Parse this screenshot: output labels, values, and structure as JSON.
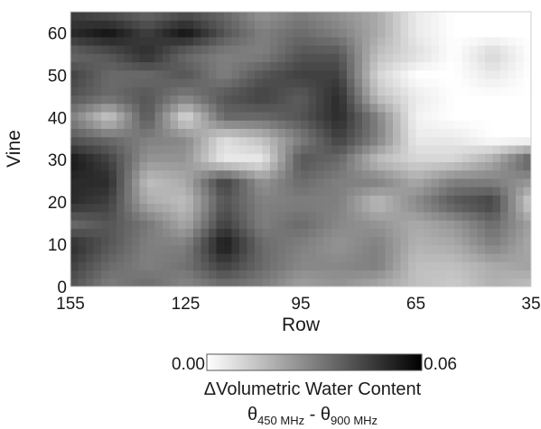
{
  "chart_data": {
    "type": "heatmap",
    "title": "",
    "xlabel": "Row",
    "ylabel": "Vine",
    "xlim": [
      155,
      35
    ],
    "ylim": [
      0,
      65
    ],
    "xticks": [
      "155",
      "125",
      "95",
      "65",
      "35"
    ],
    "yticks": [
      "0",
      "10",
      "20",
      "30",
      "40",
      "50",
      "60"
    ],
    "colorbar": {
      "min_label": "0.00",
      "max_label": "0.06",
      "title": "ΔVolumetric Water Content",
      "subtitle_left": "θ",
      "subtitle_left_sub": "450 MHz",
      "subtitle_sep": " - ",
      "subtitle_right": "θ",
      "subtitle_right_sub": "900 MHz",
      "range": [
        0.0,
        0.06
      ],
      "colormap": "white-to-black"
    },
    "grid_x": [
      155,
      145,
      135,
      125,
      115,
      105,
      95,
      85,
      75,
      65,
      55,
      45,
      35
    ],
    "grid_y": [
      0,
      5,
      10,
      15,
      20,
      25,
      30,
      35,
      40,
      45,
      50,
      55,
      60,
      65
    ],
    "values": [
      [
        0.04,
        0.03,
        0.035,
        0.028,
        0.033,
        0.03,
        0.022,
        0.025,
        0.02,
        0.015,
        0.012,
        0.018,
        0.015
      ],
      [
        0.045,
        0.035,
        0.03,
        0.033,
        0.045,
        0.035,
        0.028,
        0.028,
        0.03,
        0.015,
        0.015,
        0.02,
        0.022
      ],
      [
        0.05,
        0.04,
        0.03,
        0.03,
        0.055,
        0.035,
        0.03,
        0.025,
        0.03,
        0.018,
        0.02,
        0.03,
        0.02
      ],
      [
        0.035,
        0.04,
        0.032,
        0.02,
        0.045,
        0.03,
        0.035,
        0.028,
        0.025,
        0.02,
        0.025,
        0.035,
        0.022
      ],
      [
        0.05,
        0.045,
        0.02,
        0.015,
        0.04,
        0.03,
        0.03,
        0.03,
        0.015,
        0.028,
        0.04,
        0.045,
        0.01
      ],
      [
        0.05,
        0.05,
        0.015,
        0.02,
        0.045,
        0.025,
        0.035,
        0.03,
        0.03,
        0.02,
        0.03,
        0.03,
        0.025
      ],
      [
        0.055,
        0.045,
        0.025,
        0.025,
        0.005,
        0.005,
        0.04,
        0.035,
        0.015,
        0.01,
        0.01,
        0.02,
        0.04
      ],
      [
        0.04,
        0.035,
        0.03,
        0.028,
        0.008,
        0.015,
        0.03,
        0.045,
        0.03,
        0.005,
        0.005,
        0.0,
        0.0
      ],
      [
        0.03,
        0.012,
        0.04,
        0.008,
        0.035,
        0.035,
        0.04,
        0.05,
        0.03,
        0.003,
        0.0,
        0.0,
        0.0
      ],
      [
        0.04,
        0.035,
        0.04,
        0.03,
        0.04,
        0.045,
        0.038,
        0.05,
        0.015,
        0.005,
        0.0,
        0.0,
        0.0
      ],
      [
        0.045,
        0.035,
        0.035,
        0.04,
        0.03,
        0.04,
        0.045,
        0.045,
        0.01,
        0.0,
        0.0,
        0.005,
        0.0
      ],
      [
        0.035,
        0.04,
        0.05,
        0.035,
        0.03,
        0.03,
        0.04,
        0.04,
        0.015,
        0.008,
        0.0,
        0.01,
        0.0
      ],
      [
        0.05,
        0.055,
        0.045,
        0.055,
        0.04,
        0.03,
        0.035,
        0.03,
        0.02,
        0.005,
        0.0,
        0.0,
        0.0
      ],
      [
        0.045,
        0.04,
        0.035,
        0.04,
        0.035,
        0.025,
        0.03,
        0.025,
        0.02,
        0.005,
        0.0,
        0.0,
        0.0
      ]
    ]
  }
}
